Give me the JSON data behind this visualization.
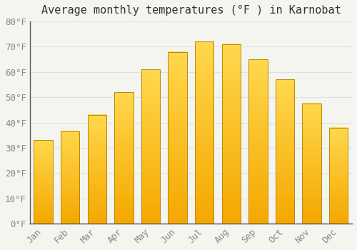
{
  "title": "Average monthly temperatures (°F ) in Karnobat",
  "months": [
    "Jan",
    "Feb",
    "Mar",
    "Apr",
    "May",
    "Jun",
    "Jul",
    "Aug",
    "Sep",
    "Oct",
    "Nov",
    "Dec"
  ],
  "values": [
    33,
    36.5,
    43,
    52,
    61,
    68,
    72,
    71,
    65,
    57,
    47.5,
    38
  ],
  "bar_color_bottom": "#F5A800",
  "bar_color_top": "#FFD84D",
  "bar_edge_color": "#B8860B",
  "ylim": [
    0,
    80
  ],
  "yticks": [
    0,
    10,
    20,
    30,
    40,
    50,
    60,
    70,
    80
  ],
  "ytick_labels": [
    "0°F",
    "10°F",
    "20°F",
    "30°F",
    "40°F",
    "50°F",
    "60°F",
    "70°F",
    "80°F"
  ],
  "grid_color": "#e0e0e0",
  "background_color": "#f5f5f0",
  "font_family": "monospace",
  "title_fontsize": 11,
  "tick_fontsize": 9,
  "figsize": [
    5.0,
    3.5
  ],
  "dpi": 100
}
